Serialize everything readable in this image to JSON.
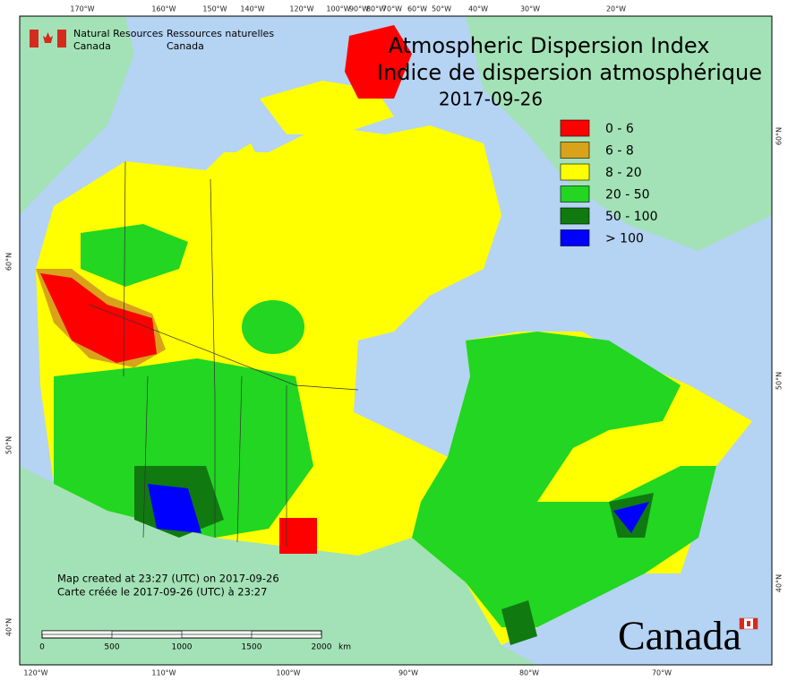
{
  "header": {
    "agency_en": "Natural Resources",
    "country_en": "Canada",
    "agency_fr": "Ressources naturelles",
    "country_fr": "Canada"
  },
  "title": {
    "line1": "Atmospheric Dispersion Index",
    "line2": "Indice de dispersion atmosphérique",
    "date": "2017-09-26"
  },
  "legend": [
    {
      "label": "0 - 6",
      "color": "#ff0000"
    },
    {
      "label": "6 - 8",
      "color": "#d9a21b"
    },
    {
      "label": "8 - 20",
      "color": "#ffff00"
    },
    {
      "label": "20 - 50",
      "color": "#22d622"
    },
    {
      "label": "50 - 100",
      "color": "#107a10"
    },
    {
      "label": "> 100",
      "color": "#0000ff"
    }
  ],
  "top_labels": [
    "170°W",
    "160°W",
    "150°W",
    "140°W",
    "120°W",
    "100°W",
    "90°W",
    "80°W",
    "70°W",
    "60°W",
    "50°W",
    "40°W",
    "30°W",
    "20°W"
  ],
  "bottom_labels": [
    "120°W",
    "110°W",
    "100°W",
    "90°W",
    "80°W",
    "70°W"
  ],
  "left_labels": [
    "60°N",
    "50°N",
    "40°N"
  ],
  "right_labels": [
    "60°N",
    "50°N",
    "40°N"
  ],
  "footer": {
    "created_en": "Map created at 23:27 (UTC) on 2017-09-26",
    "created_fr": "Carte créée le 2017-09-26 (UTC) à 23:27"
  },
  "scale_bar": {
    "labels": [
      "0",
      "500",
      "1000",
      "1500",
      "2000"
    ],
    "unit": "km"
  },
  "wordmark": "Canada"
}
